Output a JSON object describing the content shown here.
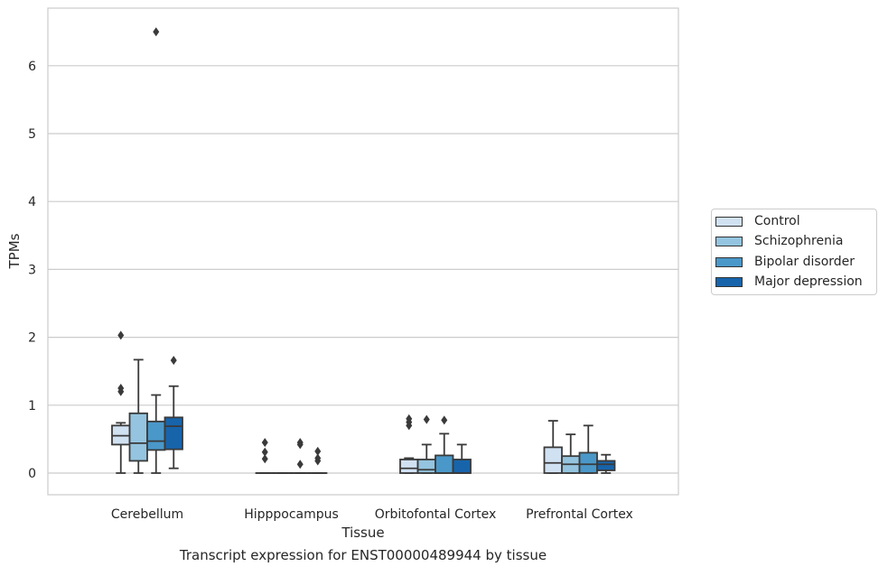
{
  "caption": "Transcript expression for ENST00000489944 by tissue",
  "chart_data": {
    "type": "boxplot",
    "xlabel": "Tissue",
    "ylabel": "TPMs",
    "ylim": [
      -0.32,
      6.85
    ],
    "yticks": [
      0,
      1,
      2,
      3,
      4,
      5,
      6
    ],
    "grid": "horizontal",
    "legend_placement": "right, outside plot",
    "categories": [
      "Cerebellum",
      "Hipppocampus",
      "Orbitofontal Cortex",
      "Prefrontal Cortex"
    ],
    "series": [
      {
        "name": "Control",
        "color": "#d0e1f2",
        "boxes": [
          {
            "whisker_low": 0,
            "q1": 0.42,
            "median": 0.55,
            "q3": 0.7,
            "whisker_high": 0.74,
            "outliers": [
              1.2,
              1.25,
              2.03
            ]
          },
          {
            "whisker_low": 0,
            "q1": 0,
            "median": 0,
            "q3": 0,
            "whisker_high": 0,
            "outliers": [
              0.21,
              0.31,
              0.45
            ]
          },
          {
            "whisker_low": 0,
            "q1": 0,
            "median": 0.07,
            "q3": 0.2,
            "whisker_high": 0.22,
            "outliers": [
              0.7,
              0.75,
              0.8
            ]
          },
          {
            "whisker_low": 0,
            "q1": 0,
            "median": 0.15,
            "q3": 0.38,
            "whisker_high": 0.77,
            "outliers": []
          }
        ]
      },
      {
        "name": "Schizophrenia",
        "color": "#94c4df",
        "boxes": [
          {
            "whisker_low": 0,
            "q1": 0.18,
            "median": 0.44,
            "q3": 0.88,
            "whisker_high": 1.67,
            "outliers": []
          },
          {
            "whisker_low": 0,
            "q1": 0,
            "median": 0,
            "q3": 0,
            "whisker_high": 0,
            "outliers": []
          },
          {
            "whisker_low": 0,
            "q1": 0,
            "median": 0.05,
            "q3": 0.2,
            "whisker_high": 0.42,
            "outliers": [
              0.79
            ]
          },
          {
            "whisker_low": 0,
            "q1": 0,
            "median": 0.13,
            "q3": 0.25,
            "whisker_high": 0.57,
            "outliers": []
          }
        ]
      },
      {
        "name": "Bipolar disorder",
        "color": "#4a98c9",
        "boxes": [
          {
            "whisker_low": 0,
            "q1": 0.34,
            "median": 0.47,
            "q3": 0.76,
            "whisker_high": 1.15,
            "outliers": [
              6.5
            ]
          },
          {
            "whisker_low": 0,
            "q1": 0,
            "median": 0,
            "q3": 0,
            "whisker_high": 0,
            "outliers": [
              0.13,
              0.42,
              0.45
            ]
          },
          {
            "whisker_low": 0,
            "q1": 0,
            "median": 0,
            "q3": 0.26,
            "whisker_high": 0.58,
            "outliers": [
              0.78
            ]
          },
          {
            "whisker_low": 0,
            "q1": 0,
            "median": 0.13,
            "q3": 0.3,
            "whisker_high": 0.7,
            "outliers": []
          }
        ]
      },
      {
        "name": "Major depression",
        "color": "#1764ab",
        "boxes": [
          {
            "whisker_low": 0.07,
            "q1": 0.35,
            "median": 0.69,
            "q3": 0.82,
            "whisker_high": 1.28,
            "outliers": [
              1.66
            ]
          },
          {
            "whisker_low": 0,
            "q1": 0,
            "median": 0,
            "q3": 0,
            "whisker_high": 0,
            "outliers": [
              0.18,
              0.22,
              0.32
            ]
          },
          {
            "whisker_low": 0,
            "q1": 0,
            "median": 0,
            "q3": 0.2,
            "whisker_high": 0.42,
            "outliers": []
          },
          {
            "whisker_low": 0,
            "q1": 0.04,
            "median": 0.13,
            "q3": 0.18,
            "whisker_high": 0.27,
            "outliers": []
          }
        ]
      }
    ]
  }
}
